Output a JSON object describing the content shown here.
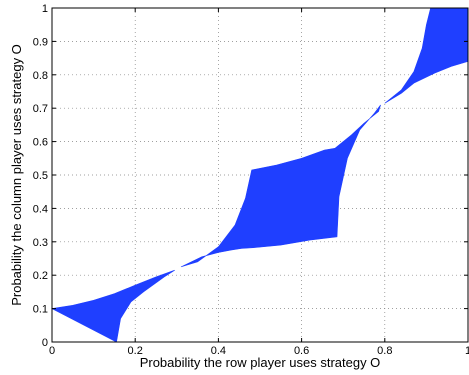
{
  "chart_data": {
    "type": "area",
    "title": "",
    "xlabel": "Probability the row player uses strategy O",
    "ylabel": "Probability the column player uses strategy O",
    "xlim": [
      0,
      1
    ],
    "ylim": [
      0,
      1
    ],
    "grid": true,
    "xticks": [
      "0",
      "0.2",
      "0.4",
      "0.6",
      "0.8",
      "1"
    ],
    "yticks": [
      "0",
      "0.1",
      "0.2",
      "0.3",
      "0.4",
      "0.5",
      "0.6",
      "0.7",
      "0.8",
      "0.9",
      "1"
    ],
    "fill_color": "#1f3fff",
    "regions": [
      {
        "points": [
          [
            0,
            0.1
          ],
          [
            0.05,
            0.11
          ],
          [
            0.1,
            0.125
          ],
          [
            0.15,
            0.145
          ],
          [
            0.2,
            0.17
          ],
          [
            0.25,
            0.195
          ],
          [
            0.295,
            0.215
          ],
          [
            0.27,
            0.195
          ],
          [
            0.22,
            0.15
          ],
          [
            0.19,
            0.12
          ],
          [
            0.165,
            0.07
          ],
          [
            0.155,
            0
          ]
        ]
      },
      {
        "points": [
          [
            0.31,
            0.225
          ],
          [
            0.35,
            0.24
          ],
          [
            0.4,
            0.285
          ],
          [
            0.44,
            0.35
          ],
          [
            0.465,
            0.43
          ],
          [
            0.48,
            0.515
          ],
          [
            0.54,
            0.53
          ],
          [
            0.6,
            0.55
          ],
          [
            0.655,
            0.575
          ],
          [
            0.68,
            0.58
          ],
          [
            0.72,
            0.62
          ],
          [
            0.75,
            0.655
          ],
          [
            0.785,
            0.69
          ],
          [
            0.79,
            0.71
          ],
          [
            0.775,
            0.685
          ],
          [
            0.74,
            0.635
          ],
          [
            0.71,
            0.55
          ],
          [
            0.69,
            0.435
          ],
          [
            0.685,
            0.315
          ],
          [
            0.62,
            0.305
          ],
          [
            0.55,
            0.29
          ],
          [
            0.49,
            0.283
          ],
          [
            0.455,
            0.28
          ],
          [
            0.43,
            0.275
          ],
          [
            0.4,
            0.268
          ],
          [
            0.36,
            0.255
          ]
        ]
      },
      {
        "points": [
          [
            0.8,
            0.715
          ],
          [
            0.84,
            0.755
          ],
          [
            0.87,
            0.81
          ],
          [
            0.89,
            0.88
          ],
          [
            0.9,
            0.95
          ],
          [
            0.91,
            1.0
          ],
          [
            1.0,
            1.0
          ],
          [
            1.0,
            0.84
          ],
          [
            0.96,
            0.825
          ],
          [
            0.92,
            0.805
          ],
          [
            0.87,
            0.775
          ],
          [
            0.84,
            0.745
          ]
        ]
      }
    ]
  }
}
